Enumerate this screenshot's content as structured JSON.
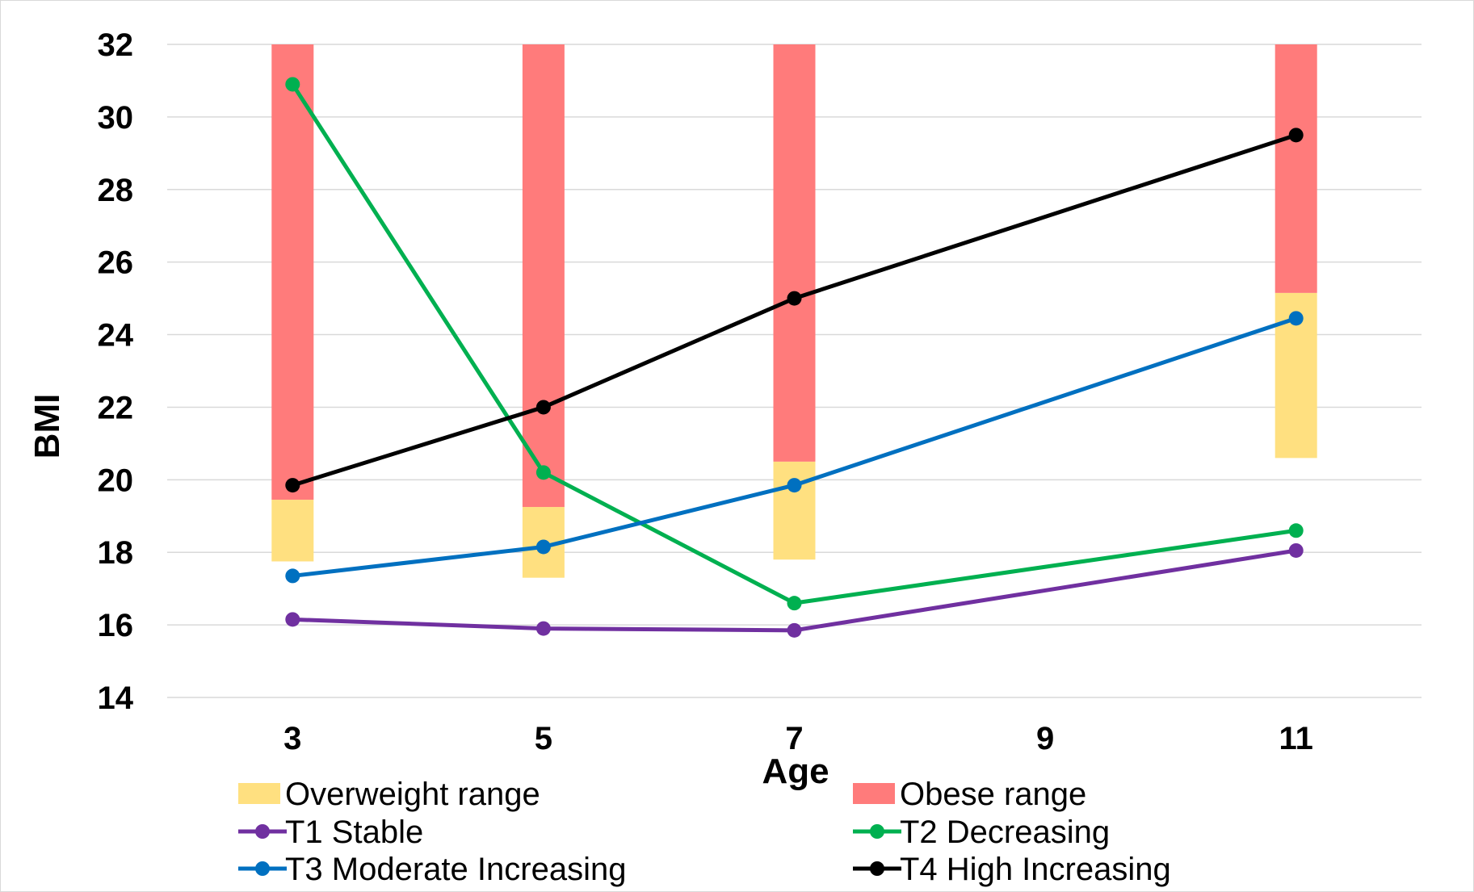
{
  "chart_data": {
    "type": "line",
    "title": "",
    "xlabel": "Age",
    "ylabel": "BMI",
    "xlim": [
      2,
      12
    ],
    "ylim": [
      14,
      32
    ],
    "xticks": [
      3,
      5,
      7,
      9,
      11
    ],
    "yticks": [
      14,
      16,
      18,
      20,
      22,
      24,
      26,
      28,
      30,
      32
    ],
    "grid": "horizontal",
    "legend": "bottom",
    "ranges": [
      {
        "name": "Overweight range",
        "color": "#FFE080",
        "bars": [
          {
            "x": 3,
            "from": 17.75,
            "to": 19.45
          },
          {
            "x": 5,
            "from": 17.3,
            "to": 19.25
          },
          {
            "x": 7,
            "from": 17.8,
            "to": 20.5
          },
          {
            "x": 11,
            "from": 20.6,
            "to": 25.15
          }
        ]
      },
      {
        "name": "Obese range",
        "color": "#FF7B7B",
        "bars": [
          {
            "x": 3,
            "from": 19.45,
            "to": 32
          },
          {
            "x": 5,
            "from": 19.25,
            "to": 32
          },
          {
            "x": 7,
            "from": 20.5,
            "to": 32
          },
          {
            "x": 11,
            "from": 25.15,
            "to": 32
          }
        ]
      }
    ],
    "series": [
      {
        "name": "T1 Stable",
        "color": "#7030A0",
        "x": [
          3,
          5,
          7,
          11
        ],
        "y": [
          16.15,
          15.9,
          15.85,
          18.05
        ]
      },
      {
        "name": "T2 Decreasing",
        "color": "#00B050",
        "x": [
          3,
          5,
          7,
          11
        ],
        "y": [
          30.9,
          20.2,
          16.6,
          18.6
        ]
      },
      {
        "name": "T3 Moderate Increasing",
        "color": "#0070C0",
        "x": [
          3,
          5,
          7,
          11
        ],
        "y": [
          17.35,
          18.15,
          19.85,
          24.45
        ]
      },
      {
        "name": "T4 High Increasing",
        "color": "#000000",
        "x": [
          3,
          5,
          7,
          11
        ],
        "y": [
          19.85,
          22.0,
          25.0,
          29.5
        ]
      }
    ]
  }
}
